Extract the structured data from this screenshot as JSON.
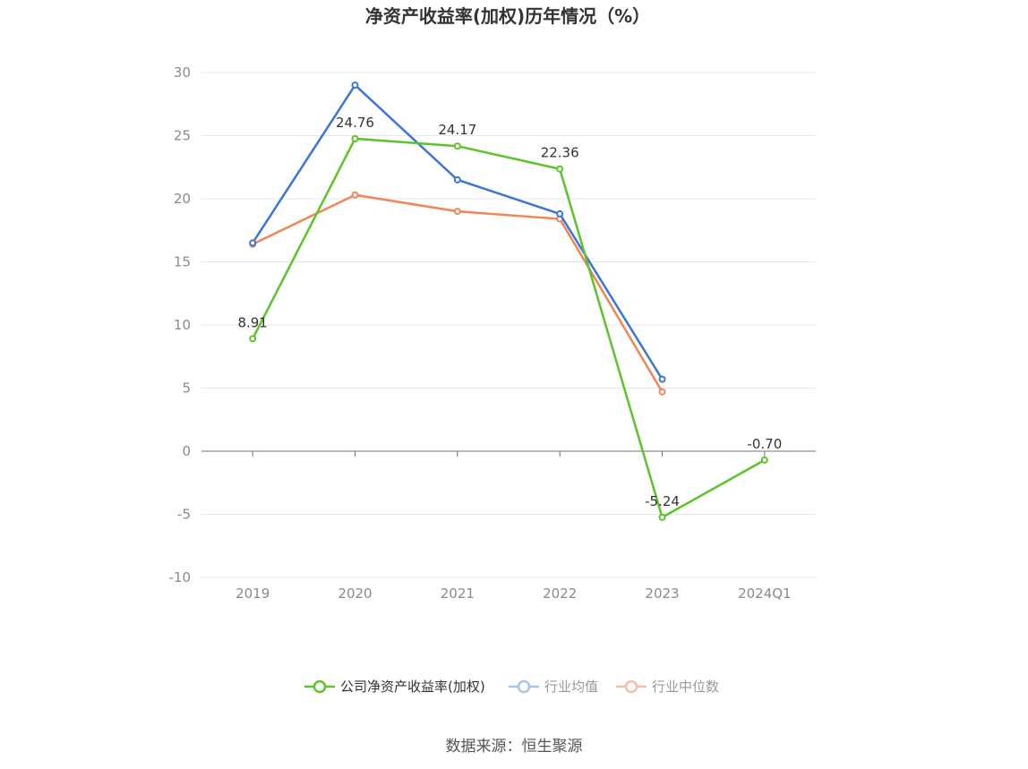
{
  "chart_data": {
    "type": "line",
    "title": "净资产收益率(加权)历年情况（%）",
    "categories": [
      "2019",
      "2020",
      "2021",
      "2022",
      "2023",
      "2024Q1"
    ],
    "ylim": [
      -10,
      30
    ],
    "yticks": [
      30,
      25,
      20,
      15,
      10,
      5,
      0,
      -5,
      -10
    ],
    "grid": true,
    "legend_position": "bottom",
    "series": [
      {
        "name": "公司净资产收益率(加权)",
        "color": "#5cc42b",
        "values": [
          8.91,
          24.76,
          24.17,
          22.36,
          -5.24,
          -0.7
        ],
        "labels": [
          "8.91",
          "24.76",
          "24.17",
          "22.36",
          "-5.24",
          "-0.70"
        ]
      },
      {
        "name": "行业均值",
        "color": "#3a74dc",
        "values": [
          16.5,
          29.0,
          21.5,
          18.8,
          5.7,
          null
        ]
      },
      {
        "name": "行业中位数",
        "color": "#ef8655",
        "values": [
          16.4,
          20.3,
          19.0,
          18.4,
          4.7,
          null
        ]
      }
    ]
  },
  "source": "数据来源：恒生聚源"
}
